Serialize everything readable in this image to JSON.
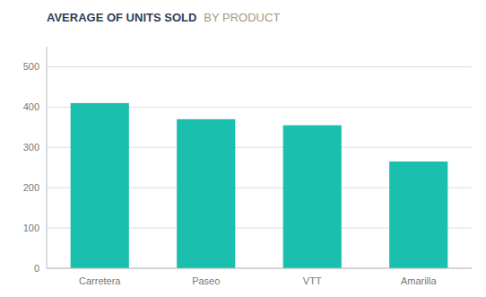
{
  "chart_data": {
    "type": "bar",
    "title": "AVERAGE OF UNITS SOLD",
    "subtitle": "BY PRODUCT",
    "categories": [
      "Carretera",
      "Paseo",
      "VTT",
      "Amarilla"
    ],
    "values": [
      410,
      370,
      355,
      265
    ],
    "color": "#1ABFAD",
    "ylim": [
      0,
      550
    ],
    "yticks": [
      0,
      100,
      200,
      300,
      400,
      500
    ],
    "grid": true
  }
}
